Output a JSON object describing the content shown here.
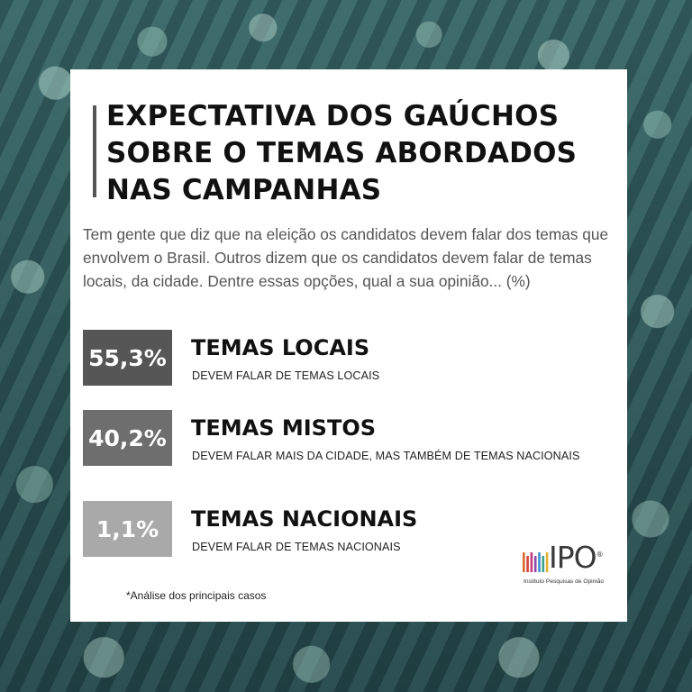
{
  "title_lines": [
    "EXPECTATIVA DOS GAÚCHOS",
    "SOBRE O TEMAS ABORDADOS",
    "NAS CAMPANHAS"
  ],
  "question": "Tem gente que diz que na eleição os candidatos devem falar dos temas que envolvem o Brasil. Outros dizem que os candidatos devem falar de temas locais, da cidade. Dentre essas opções, qual a sua opinião... (%)",
  "footnote": "*Análise dos principais casos",
  "logo": {
    "name": "IPO",
    "registered": "®",
    "subtitle": "Instituto Pesquisas de Opinião",
    "bar_colors": [
      "#e0692e",
      "#d4463a",
      "#c33a7a",
      "#8e4aa8",
      "#3a8fcf",
      "#3aa38a",
      "#e0b12e"
    ]
  },
  "colors": {
    "box_dark": "#565656",
    "box_mid": "#6e6e6e",
    "box_light": "#a9a9a9"
  },
  "chart_data": {
    "type": "table",
    "rows": [
      {
        "label": "55,3%",
        "value": 55.3,
        "title": "TEMAS LOCAIS",
        "subtitle": "DEVEM FALAR DE TEMAS LOCAIS",
        "color": "#565656"
      },
      {
        "label": "40,2%",
        "value": 40.2,
        "title": "TEMAS MISTOS",
        "subtitle": "DEVEM FALAR MAIS DA CIDADE, MAS TAMBÉM DE TEMAS NACIONAIS",
        "color": "#6e6e6e"
      },
      {
        "label": "1,1%",
        "value": 1.1,
        "title": "TEMAS NACIONAIS",
        "subtitle": "DEVEM FALAR DE TEMAS NACIONAIS",
        "color": "#a9a9a9"
      }
    ]
  }
}
